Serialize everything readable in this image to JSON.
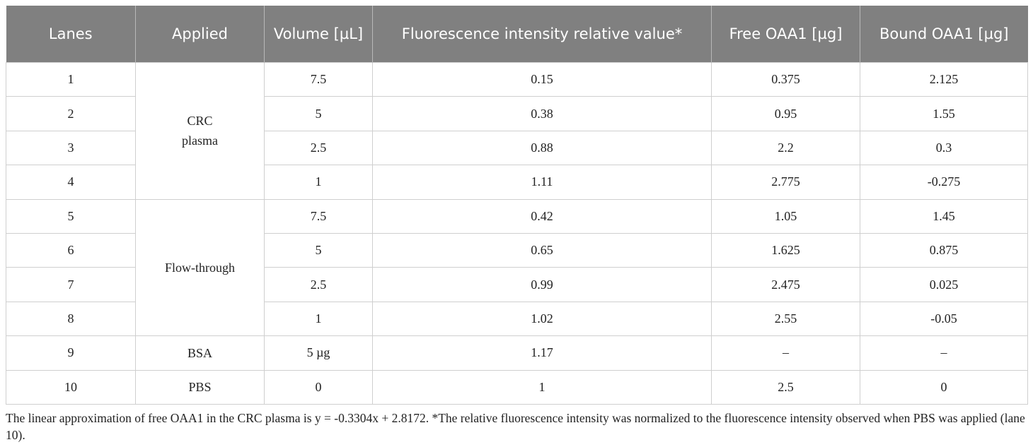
{
  "table": {
    "header": [
      "Lanes",
      "Applied",
      "Volume [µL]",
      "Fluorescence intensity relative value*",
      "Free OAA1 [µg]",
      "Bound OAA1 [µg]"
    ],
    "groups": [
      {
        "applied": "CRC plasma",
        "rows": [
          [
            "1",
            "7.5",
            "0.15",
            "0.375",
            "2.125"
          ],
          [
            "2",
            "5",
            "0.38",
            "0.95",
            "1.55"
          ],
          [
            "3",
            "2.5",
            "0.88",
            "2.2",
            "0.3"
          ],
          [
            "4",
            "1",
            "1.11",
            "2.775",
            "-0.275"
          ]
        ]
      },
      {
        "applied": "Flow-through",
        "rows": [
          [
            "5",
            "7.5",
            "0.42",
            "1.05",
            "1.45"
          ],
          [
            "6",
            "5",
            "0.65",
            "1.625",
            "0.875"
          ],
          [
            "7",
            "2.5",
            "0.99",
            "2.475",
            "0.025"
          ],
          [
            "8",
            "1",
            "1.02",
            "2.55",
            "-0.05"
          ]
        ]
      },
      {
        "applied": "BSA",
        "rows": [
          [
            "9",
            "5 µg",
            "1.17",
            "–",
            "–"
          ]
        ]
      },
      {
        "applied": "PBS",
        "rows": [
          [
            "10",
            "0",
            "1",
            "2.5",
            "0"
          ]
        ]
      }
    ]
  },
  "footnote": "The linear approximation of free OAA1 in the CRC plasma is y = -0.3304x + 2.8172. *The relative fluorescence intensity was normalized to the fluorescence intensity observed when PBS was applied (lane 10)."
}
